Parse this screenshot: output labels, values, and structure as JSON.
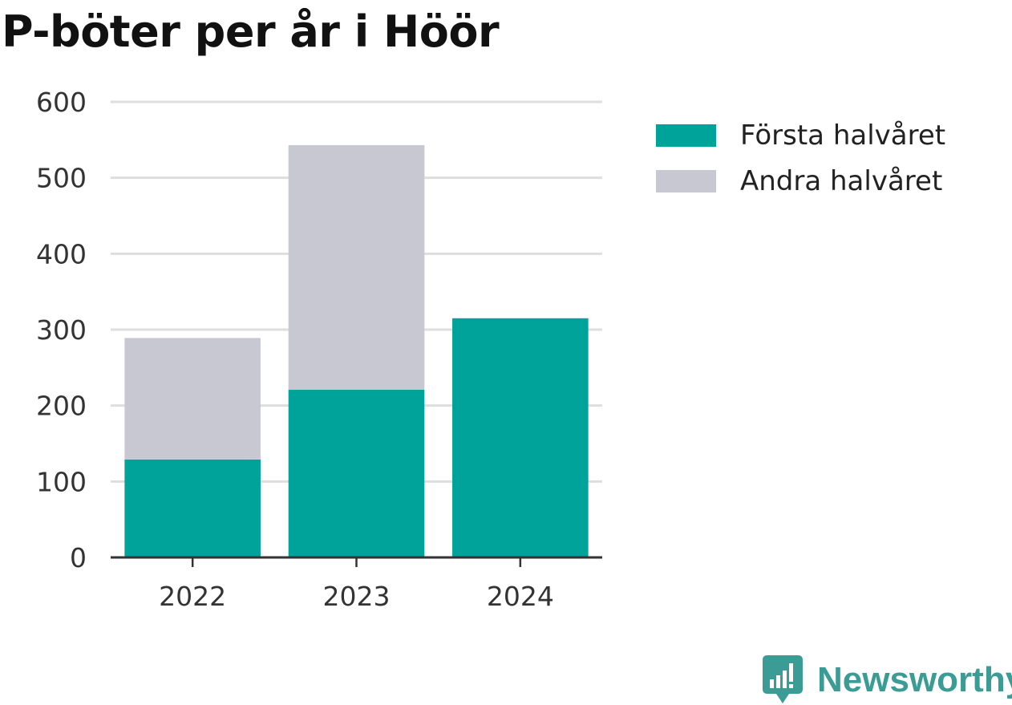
{
  "chart_data": {
    "type": "bar",
    "stacked": true,
    "title": "P-böter per år i Höör",
    "categories": [
      "2022",
      "2023",
      "2024"
    ],
    "series": [
      {
        "name": "Första halvåret",
        "values": [
          129,
          221,
          315
        ],
        "color": "#00a39a"
      },
      {
        "name": "Andra halvåret",
        "values": [
          160,
          322,
          0
        ],
        "color": "#c8c8d2"
      }
    ],
    "yticks": [
      0,
      100,
      200,
      300,
      400,
      500,
      600
    ],
    "ylim": [
      0,
      600
    ],
    "xlabel": "",
    "ylabel": "",
    "grid": true,
    "legend_position": "right"
  },
  "colors": {
    "grid": "#dedede",
    "axis": "#333333"
  },
  "brand": {
    "name": "Newsworthy",
    "color": "#3a9c94",
    "icon": "newsworthy-logo-icon"
  }
}
